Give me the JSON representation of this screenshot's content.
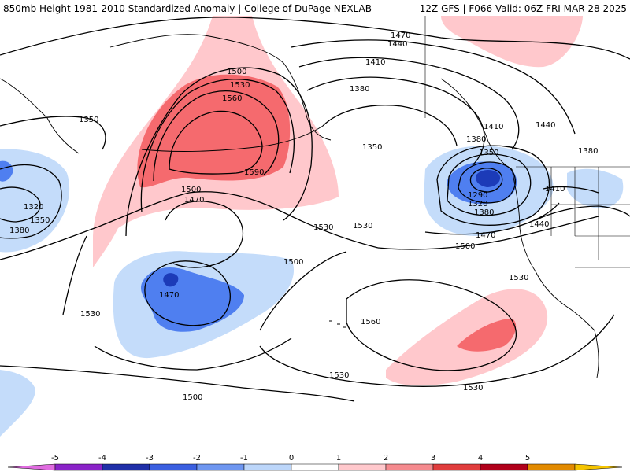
{
  "header": {
    "title": "850mb Height 1981-2010 Standardized Anomaly | College of DuPage NEXLAB",
    "run_info": "12Z GFS | F066 Valid: 06Z FRI MAR 28 2025"
  },
  "contour_labels": [
    "1470",
    "1440",
    "1410",
    "1380",
    "1500",
    "1530",
    "1560",
    "1590",
    "1350",
    "1350",
    "1380",
    "1410",
    "1440",
    "1380",
    "1350",
    "1290",
    "1320",
    "1380",
    "1470",
    "1500",
    "1410",
    "1440",
    "1500",
    "1470",
    "1530",
    "1530",
    "1500",
    "1470",
    "1530",
    "1530",
    "1560",
    "1530",
    "1530",
    "1500",
    "1320",
    "1350",
    "1380"
  ],
  "colorbar": {
    "ticks": [
      "-5",
      "-4",
      "-3",
      "-2",
      "-1",
      "0",
      "1",
      "2",
      "3",
      "4",
      "5"
    ],
    "colors": [
      "#e06be0",
      "#8a22c8",
      "#1f2fa8",
      "#3a5fe0",
      "#6e96f0",
      "#bcd6fa",
      "#ffffff",
      "#ffc8cc",
      "#f58a8e",
      "#e03c3c",
      "#b0001a",
      "#e28a00",
      "#f5c400"
    ]
  },
  "shading_colors": {
    "neg1": "#c4dcfa",
    "neg2": "#4f7ff0",
    "neg3": "#1c3bb8",
    "pos1": "#ffc8cc",
    "pos2": "#f56a6e",
    "pos3": "#d8262b"
  }
}
